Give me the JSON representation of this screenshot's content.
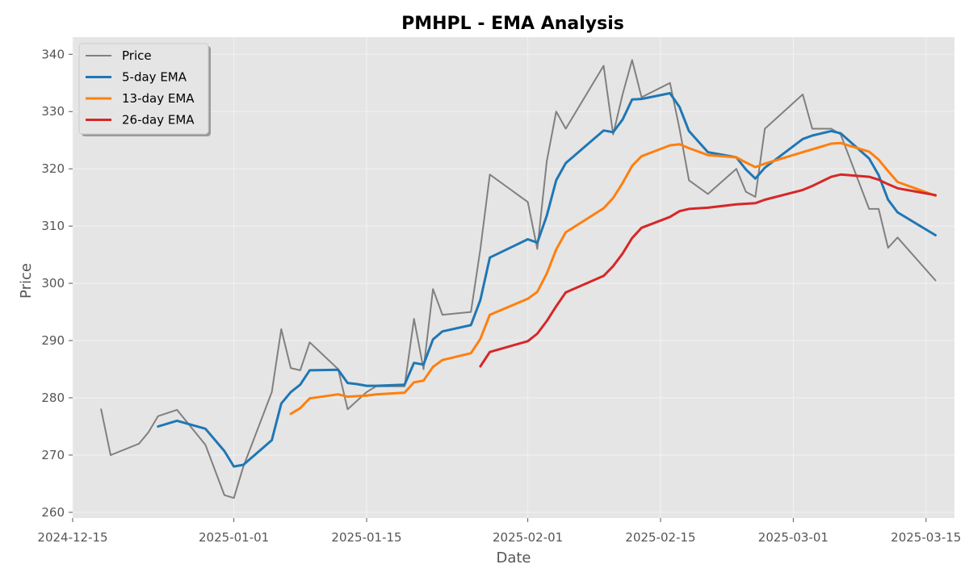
{
  "chart_data": {
    "type": "line",
    "title": "PMHPL - EMA Analysis",
    "xlabel": "Date",
    "ylabel": "Price",
    "xlim": [
      "2024-12-15",
      "2025-03-18"
    ],
    "ylim": [
      259,
      343
    ],
    "x_ticks": [
      "2024-12-15",
      "2025-01-01",
      "2025-01-15",
      "2025-02-01",
      "2025-02-15",
      "2025-03-01",
      "2025-03-15"
    ],
    "y_ticks": [
      260,
      270,
      280,
      290,
      300,
      310,
      320,
      330,
      340
    ],
    "grid": true,
    "legend_position": "top-left",
    "colors": {
      "background": "#e5e5e5",
      "grid": "#f2f2f2",
      "Price": "#808080",
      "5-day EMA": "#1f77b4",
      "13-day EMA": "#ff7f0e",
      "26-day EMA": "#d62728"
    },
    "series": [
      {
        "name": "Price",
        "x": [
          "2024-12-18",
          "2024-12-19",
          "2024-12-22",
          "2024-12-23",
          "2024-12-24",
          "2024-12-26",
          "2024-12-29",
          "2024-12-31",
          "2025-01-01",
          "2025-01-02",
          "2025-01-05",
          "2025-01-06",
          "2025-01-07",
          "2025-01-08",
          "2025-01-09",
          "2025-01-12",
          "2025-01-13",
          "2025-01-14",
          "2025-01-15",
          "2025-01-16",
          "2025-01-19",
          "2025-01-20",
          "2025-01-21",
          "2025-01-22",
          "2025-01-23",
          "2025-01-26",
          "2025-01-27",
          "2025-01-28",
          "2025-02-01",
          "2025-02-02",
          "2025-02-03",
          "2025-02-04",
          "2025-02-05",
          "2025-02-09",
          "2025-02-10",
          "2025-02-11",
          "2025-02-12",
          "2025-02-13",
          "2025-02-16",
          "2025-02-17",
          "2025-02-18",
          "2025-02-20",
          "2025-02-23",
          "2025-02-24",
          "2025-02-25",
          "2025-02-26",
          "2025-03-02",
          "2025-03-03",
          "2025-03-05",
          "2025-03-06",
          "2025-03-09",
          "2025-03-10",
          "2025-03-11",
          "2025-03-12",
          "2025-03-16"
        ],
        "values": [
          278.0,
          270.0,
          272.0,
          274.0,
          276.8,
          277.9,
          271.8,
          263.0,
          262.5,
          268.0,
          281.0,
          292.0,
          285.2,
          284.8,
          289.7,
          285.0,
          278.0,
          279.5,
          281.0,
          282.0,
          282.0,
          293.8,
          285.0,
          299.0,
          294.5,
          295.0,
          306.0,
          319.0,
          314.2,
          306.0,
          321.3,
          330.0,
          327.0,
          338.0,
          326.0,
          333.0,
          339.0,
          332.5,
          335.0,
          327.0,
          318.0,
          315.6,
          320.0,
          316.0,
          315.1,
          327.0,
          333.0,
          327.0,
          327.0,
          326.0,
          313.0,
          313.0,
          306.2,
          308.0,
          300.5
        ]
      },
      {
        "name": "5-day EMA",
        "x": [
          "2024-12-24",
          "2024-12-26",
          "2024-12-29",
          "2024-12-31",
          "2025-01-01",
          "2025-01-02",
          "2025-01-05",
          "2025-01-06",
          "2025-01-07",
          "2025-01-08",
          "2025-01-09",
          "2025-01-12",
          "2025-01-13",
          "2025-01-14",
          "2025-01-15",
          "2025-01-16",
          "2025-01-19",
          "2025-01-20",
          "2025-01-21",
          "2025-01-22",
          "2025-01-23",
          "2025-01-26",
          "2025-01-27",
          "2025-01-28",
          "2025-02-01",
          "2025-02-02",
          "2025-02-03",
          "2025-02-04",
          "2025-02-05",
          "2025-02-09",
          "2025-02-10",
          "2025-02-11",
          "2025-02-12",
          "2025-02-13",
          "2025-02-16",
          "2025-02-17",
          "2025-02-18",
          "2025-02-20",
          "2025-02-23",
          "2025-02-24",
          "2025-02-25",
          "2025-02-26",
          "2025-03-02",
          "2025-03-03",
          "2025-03-05",
          "2025-03-06",
          "2025-03-09",
          "2025-03-10",
          "2025-03-11",
          "2025-03-12",
          "2025-03-16"
        ],
        "values": [
          275.0,
          276.0,
          274.6,
          270.7,
          268.0,
          268.3,
          272.6,
          279.0,
          281.0,
          282.3,
          284.8,
          284.9,
          282.6,
          282.4,
          282.1,
          282.1,
          282.3,
          286.1,
          285.8,
          290.2,
          291.6,
          292.7,
          297.1,
          304.5,
          307.7,
          307.1,
          311.8,
          318.0,
          321.0,
          326.7,
          326.4,
          328.6,
          332.1,
          332.2,
          333.2,
          330.8,
          326.6,
          322.9,
          322.0,
          319.9,
          318.3,
          320.2,
          325.2,
          325.8,
          326.6,
          326.2,
          321.8,
          318.9,
          314.6,
          312.4,
          308.4
        ]
      },
      {
        "name": "13-day EMA",
        "x": [
          "2025-01-07",
          "2025-01-08",
          "2025-01-09",
          "2025-01-12",
          "2025-01-13",
          "2025-01-14",
          "2025-01-15",
          "2025-01-16",
          "2025-01-19",
          "2025-01-20",
          "2025-01-21",
          "2025-01-22",
          "2025-01-23",
          "2025-01-26",
          "2025-01-27",
          "2025-01-28",
          "2025-02-01",
          "2025-02-02",
          "2025-02-03",
          "2025-02-04",
          "2025-02-05",
          "2025-02-09",
          "2025-02-10",
          "2025-02-11",
          "2025-02-12",
          "2025-02-13",
          "2025-02-16",
          "2025-02-17",
          "2025-02-18",
          "2025-02-20",
          "2025-02-23",
          "2025-02-24",
          "2025-02-25",
          "2025-02-26",
          "2025-03-02",
          "2025-03-03",
          "2025-03-05",
          "2025-03-06",
          "2025-03-09",
          "2025-03-10",
          "2025-03-11",
          "2025-03-12",
          "2025-03-16"
        ],
        "values": [
          277.2,
          278.2,
          279.9,
          280.6,
          280.2,
          280.3,
          280.4,
          280.6,
          280.9,
          282.7,
          283.0,
          285.4,
          286.6,
          287.8,
          290.3,
          294.5,
          297.3,
          298.5,
          301.7,
          305.9,
          308.9,
          313.1,
          314.9,
          317.5,
          320.5,
          322.2,
          324.1,
          324.3,
          323.6,
          322.4,
          322.0,
          321.1,
          320.3,
          320.9,
          322.9,
          323.4,
          324.4,
          324.5,
          323.0,
          321.6,
          319.6,
          317.7,
          315.3
        ]
      },
      {
        "name": "26-day EMA",
        "x": [
          "2025-01-27",
          "2025-01-28",
          "2025-02-01",
          "2025-02-02",
          "2025-02-03",
          "2025-02-04",
          "2025-02-05",
          "2025-02-09",
          "2025-02-10",
          "2025-02-11",
          "2025-02-12",
          "2025-02-13",
          "2025-02-16",
          "2025-02-17",
          "2025-02-18",
          "2025-02-20",
          "2025-02-23",
          "2025-02-24",
          "2025-02-25",
          "2025-02-26",
          "2025-03-02",
          "2025-03-03",
          "2025-03-05",
          "2025-03-06",
          "2025-03-09",
          "2025-03-10",
          "2025-03-11",
          "2025-03-12",
          "2025-03-16"
        ],
        "values": [
          285.5,
          288.0,
          289.9,
          291.2,
          293.4,
          296.0,
          298.4,
          301.3,
          303.0,
          305.2,
          307.9,
          309.7,
          311.6,
          312.6,
          313.0,
          313.2,
          313.8,
          313.9,
          314.0,
          314.6,
          316.3,
          317.0,
          318.6,
          319.0,
          318.6,
          318.1,
          317.3,
          316.6,
          315.4
        ]
      }
    ]
  }
}
